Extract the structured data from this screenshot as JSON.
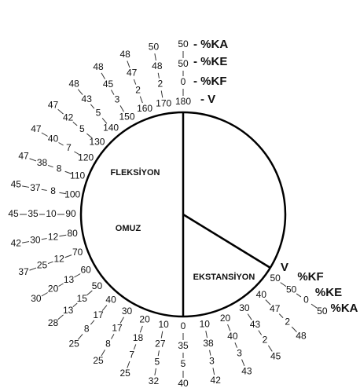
{
  "top_headers": [
    "- V",
    "- %KF",
    "- %KE",
    "- %KA"
  ],
  "side_headers": [
    "V",
    "%KF",
    "%KE",
    "%KA"
  ],
  "labels": {
    "flexion": "FLEKSİYON",
    "joint": "OMUZ",
    "extension": "EKSTANSİYON"
  },
  "flexion": [
    {
      "v": 0,
      "kf": 35,
      "ke": 5,
      "ka": 40
    },
    {
      "v": 10,
      "kf": 27,
      "ke": 5,
      "ka": 32
    },
    {
      "v": 20,
      "kf": 18,
      "ke": 7,
      "ka": 25
    },
    {
      "v": 30,
      "kf": 17,
      "ke": 8,
      "ka": 25
    },
    {
      "v": 40,
      "kf": 17,
      "ke": 8,
      "ka": 25
    },
    {
      "v": 50,
      "kf": 15,
      "ke": 13,
      "ka": 28
    },
    {
      "v": 60,
      "kf": 13,
      "ke": 20,
      "ka": 30
    },
    {
      "v": 70,
      "kf": 12,
      "ke": 25,
      "ka": 37
    },
    {
      "v": 80,
      "kf": 12,
      "ke": 30,
      "ka": 42
    },
    {
      "v": 90,
      "kf": 10,
      "ke": 35,
      "ka": 45
    },
    {
      "v": 100,
      "kf": 8,
      "ke": 37,
      "ka": 45
    },
    {
      "v": 110,
      "kf": 8,
      "ke": 38,
      "ka": 47
    },
    {
      "v": 120,
      "kf": 7,
      "ke": 40,
      "ka": 47
    },
    {
      "v": 130,
      "kf": 5,
      "ke": 42,
      "ka": 47
    },
    {
      "v": 140,
      "kf": 5,
      "ke": 43,
      "ka": 48
    },
    {
      "v": 150,
      "kf": 3,
      "ke": 45,
      "ka": 48
    },
    {
      "v": 160,
      "kf": 2,
      "ke": 47,
      "ka": 48
    },
    {
      "v": 170,
      "kf": 2,
      "ke": 48,
      "ka": 50
    },
    {
      "v": 180,
      "kf": 0,
      "ke": 50,
      "ka": 50
    }
  ],
  "extension": [
    {
      "v": 10,
      "kf": 38,
      "ke": 3,
      "ka": 42
    },
    {
      "v": 20,
      "kf": 40,
      "ke": 3,
      "ka": 43
    },
    {
      "v": 30,
      "kf": 43,
      "ke": 2,
      "ka": 45
    },
    {
      "v": 40,
      "kf": 47,
      "ke": 2,
      "ka": 48
    },
    {
      "v": 50,
      "kf": 50,
      "ke": 0,
      "ka": 50
    }
  ]
}
